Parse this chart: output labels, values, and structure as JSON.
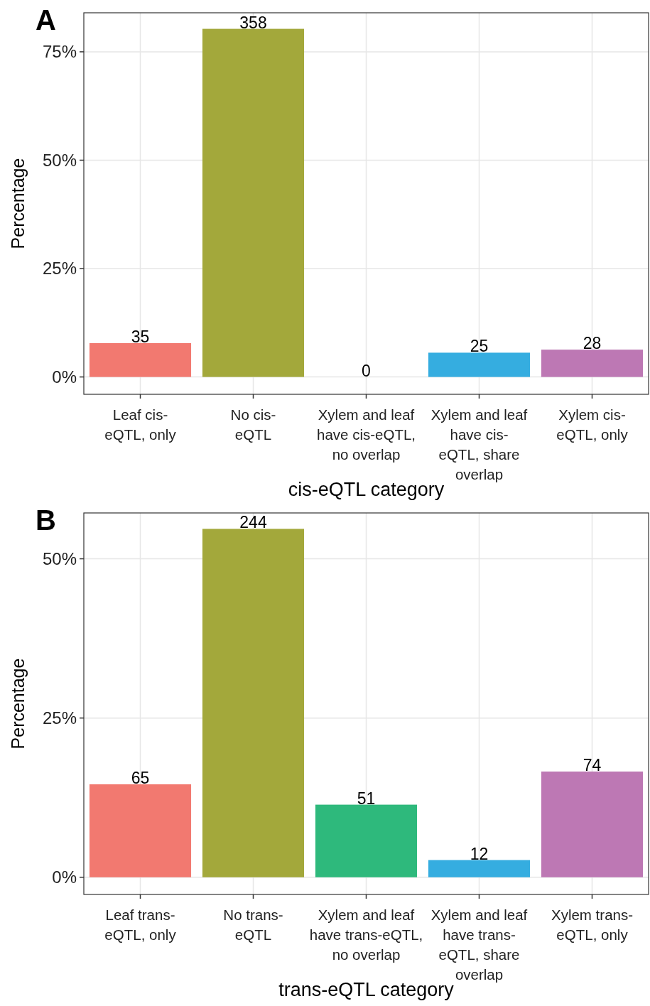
{
  "chart_data": [
    {
      "type": "bar",
      "title": "A",
      "xlabel": "cis-eQTL category",
      "ylabel": "Percentage",
      "categories": [
        "Leaf cis-\neQTL, only",
        "No cis-\neQTL",
        "Xylem and leaf\nhave cis-eQTL,\nno overlap",
        "Xylem and leaf\nhave cis-\neQTL, share\noverlap",
        "Xylem cis-\neQTL, only"
      ],
      "values": [
        7.8,
        80.3,
        0,
        5.6,
        6.3
      ],
      "colors": [
        "#f27970",
        "#a3a83b",
        "#2eb97c",
        "#35ade0",
        "#bd78b4"
      ],
      "annotations": [
        {
          "text": "35",
          "x": "Leaf cis-\neQTL, only",
          "y": 7.8
        },
        {
          "text": "358",
          "x": "No cis-\neQTL",
          "y": 80.3
        },
        {
          "text": "0",
          "x": "Xylem and leaf\nhave cis-eQTL,\nno overlap",
          "y": 0
        },
        {
          "text": "25",
          "x": "Xylem and leaf\nhave cis-\neQTL, share\noverlap",
          "y": 5.6
        },
        {
          "text": "28",
          "x": "Xylem cis-\neQTL, only",
          "y": 6.3
        }
      ],
      "ylim": [
        -4,
        84
      ],
      "yticks": [
        {
          "value": 0,
          "label": "0%"
        },
        {
          "value": 25,
          "label": "25%"
        },
        {
          "value": 50,
          "label": "50%"
        },
        {
          "value": 75,
          "label": "75%"
        }
      ],
      "grid": true
    },
    {
      "type": "bar",
      "title": "B",
      "xlabel": "trans-eQTL category",
      "ylabel": "Percentage",
      "categories": [
        "Leaf trans-\neQTL, only",
        "No trans-\neQTL",
        "Xylem and leaf\nhave trans-eQTL,\nno overlap",
        "Xylem and leaf\nhave trans-\neQTL, share\noverlap",
        "Xylem trans-\neQTL, only"
      ],
      "values": [
        14.6,
        54.7,
        11.4,
        2.7,
        16.6
      ],
      "colors": [
        "#f27970",
        "#a3a83b",
        "#2eb97c",
        "#35ade0",
        "#bd78b4"
      ],
      "annotations": [
        {
          "text": "65",
          "x": "Leaf trans-\neQTL, only",
          "y": 14.6
        },
        {
          "text": "244",
          "x": "No trans-\neQTL",
          "y": 54.7
        },
        {
          "text": "51",
          "x": "Xylem and leaf\nhave trans-eQTL,\nno overlap",
          "y": 11.4
        },
        {
          "text": "12",
          "x": "Xylem and leaf\nhave trans-\neQTL, share\noverlap",
          "y": 2.7
        },
        {
          "text": "74",
          "x": "Xylem trans-\neQTL, only",
          "y": 16.6
        }
      ],
      "ylim": [
        -2.7,
        57.2
      ],
      "yticks": [
        {
          "value": 0,
          "label": "0%"
        },
        {
          "value": 25,
          "label": "25%"
        },
        {
          "value": 50,
          "label": "50%"
        }
      ],
      "grid": true
    }
  ]
}
